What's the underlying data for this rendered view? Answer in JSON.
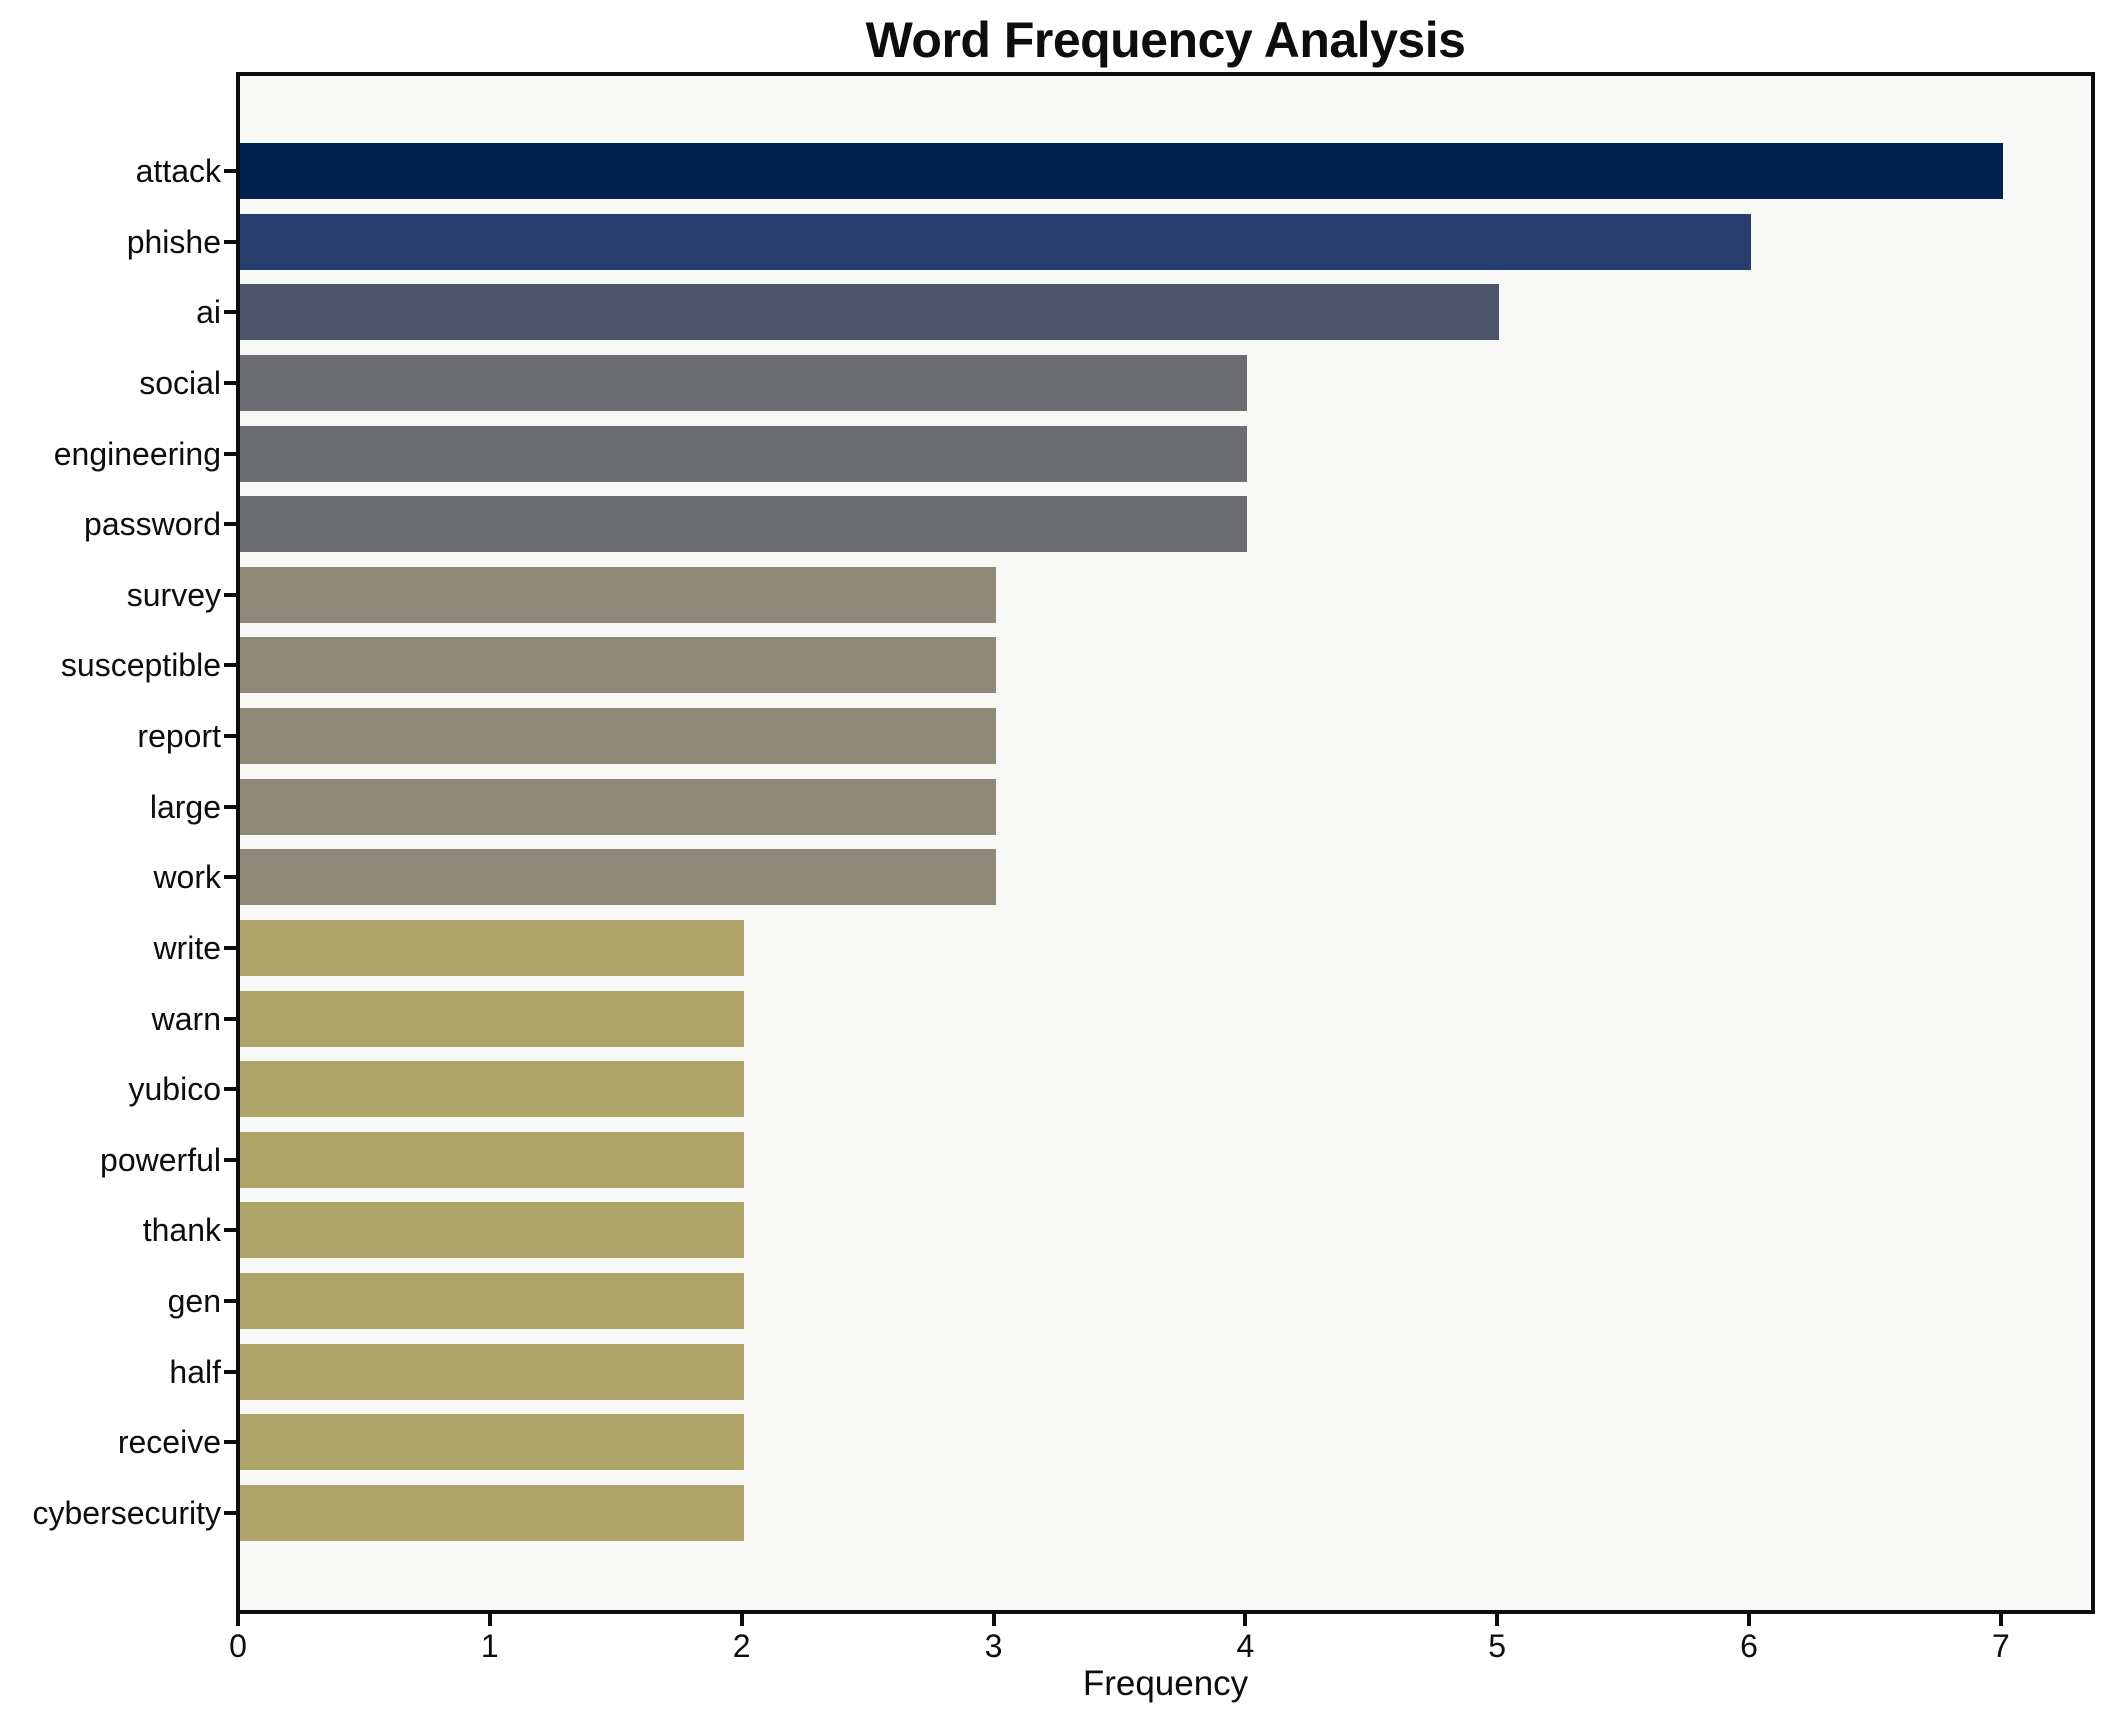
{
  "chart_data": {
    "type": "bar",
    "orientation": "horizontal",
    "title": "Word Frequency Analysis",
    "xlabel": "Frequency",
    "ylabel": "",
    "categories": [
      "attack",
      "phishe",
      "ai",
      "social",
      "engineering",
      "password",
      "survey",
      "susceptible",
      "report",
      "large",
      "work",
      "write",
      "warn",
      "yubico",
      "powerful",
      "thank",
      "gen",
      "half",
      "receive",
      "cybersecurity"
    ],
    "values": [
      7,
      6,
      5,
      4,
      4,
      4,
      3,
      3,
      3,
      3,
      3,
      2,
      2,
      2,
      2,
      2,
      2,
      2,
      2,
      2
    ],
    "colors": [
      "#02224e",
      "#263d6d",
      "#4e5468",
      "#6c6d71",
      "#6c6d71",
      "#6c6d71",
      "#8e8978",
      "#8e8978",
      "#8e8978",
      "#8e8978",
      "#8e8978",
      "#aea46a",
      "#aea46a",
      "#aea46a",
      "#aea46a",
      "#aea46a",
      "#aea46a",
      "#aea46a",
      "#aea46a",
      "#aea46a"
    ],
    "xticks": [
      0,
      1,
      2,
      3,
      4,
      5,
      6,
      7
    ],
    "xlim": [
      0,
      7.35
    ],
    "grid": false,
    "legend": false,
    "plot_background": "#f8f8f6",
    "figure_background": "#ffffff",
    "spine_color": "#0d0d0d",
    "text_color": "#0d0d0d"
  }
}
